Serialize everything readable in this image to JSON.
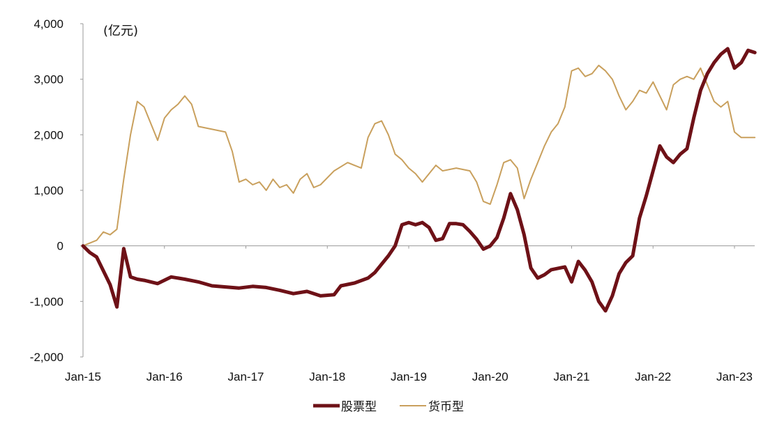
{
  "chart_data": {
    "type": "line",
    "unit_label": "(亿元)",
    "x_tick_labels": [
      "Jan-15",
      "Jan-16",
      "Jan-17",
      "Jan-18",
      "Jan-19",
      "Jan-20",
      "Jan-21",
      "Jan-22",
      "Jan-23"
    ],
    "y_tick_labels": [
      "4,000",
      "3,000",
      "2,000",
      "1,000",
      "0",
      "-1,000",
      "-2,000"
    ],
    "ylim": [
      -2000,
      4000
    ],
    "xlim": [
      "2015-01",
      "2023-05"
    ],
    "grid": false,
    "legend_position": "bottom-center",
    "series": [
      {
        "name": "股票型",
        "color": "#6e1117",
        "points": [
          [
            "2015-01",
            0
          ],
          [
            "2015-02",
            -120
          ],
          [
            "2015-03",
            -200
          ],
          [
            "2015-04",
            -450
          ],
          [
            "2015-05",
            -700
          ],
          [
            "2015-06",
            -1100
          ],
          [
            "2015-07",
            -50
          ],
          [
            "2015-08",
            -560
          ],
          [
            "2015-09",
            -600
          ],
          [
            "2015-10",
            -620
          ],
          [
            "2015-12",
            -680
          ],
          [
            "2016-02",
            -560
          ],
          [
            "2016-04",
            -600
          ],
          [
            "2016-06",
            -650
          ],
          [
            "2016-08",
            -720
          ],
          [
            "2016-10",
            -740
          ],
          [
            "2016-12",
            -760
          ],
          [
            "2017-02",
            -730
          ],
          [
            "2017-04",
            -750
          ],
          [
            "2017-06",
            -800
          ],
          [
            "2017-08",
            -860
          ],
          [
            "2017-10",
            -820
          ],
          [
            "2017-12",
            -900
          ],
          [
            "2018-02",
            -880
          ],
          [
            "2018-03",
            -720
          ],
          [
            "2018-05",
            -670
          ],
          [
            "2018-07",
            -580
          ],
          [
            "2018-08",
            -480
          ],
          [
            "2018-10",
            -180
          ],
          [
            "2018-11",
            0
          ],
          [
            "2018-12",
            380
          ],
          [
            "2019-01",
            420
          ],
          [
            "2019-02",
            380
          ],
          [
            "2019-03",
            420
          ],
          [
            "2019-04",
            330
          ],
          [
            "2019-05",
            100
          ],
          [
            "2019-06",
            130
          ],
          [
            "2019-07",
            400
          ],
          [
            "2019-08",
            400
          ],
          [
            "2019-09",
            380
          ],
          [
            "2019-10",
            260
          ],
          [
            "2019-11",
            120
          ],
          [
            "2019-12",
            -60
          ],
          [
            "2020-01",
            0
          ],
          [
            "2020-02",
            150
          ],
          [
            "2020-03",
            500
          ],
          [
            "2020-04",
            940
          ],
          [
            "2020-05",
            650
          ],
          [
            "2020-06",
            200
          ],
          [
            "2020-07",
            -400
          ],
          [
            "2020-08",
            -580
          ],
          [
            "2020-09",
            -520
          ],
          [
            "2020-10",
            -430
          ],
          [
            "2020-12",
            -380
          ],
          [
            "2021-01",
            -650
          ],
          [
            "2021-02",
            -280
          ],
          [
            "2021-03",
            -440
          ],
          [
            "2021-04",
            -650
          ],
          [
            "2021-05",
            -1000
          ],
          [
            "2021-06",
            -1170
          ],
          [
            "2021-07",
            -900
          ],
          [
            "2021-08",
            -500
          ],
          [
            "2021-09",
            -300
          ],
          [
            "2021-10",
            -180
          ],
          [
            "2021-11",
            500
          ],
          [
            "2021-12",
            900
          ],
          [
            "2022-01",
            1350
          ],
          [
            "2022-02",
            1800
          ],
          [
            "2022-03",
            1600
          ],
          [
            "2022-04",
            1500
          ],
          [
            "2022-05",
            1650
          ],
          [
            "2022-06",
            1750
          ],
          [
            "2022-07",
            2300
          ],
          [
            "2022-08",
            2800
          ],
          [
            "2022-09",
            3100
          ],
          [
            "2022-10",
            3300
          ],
          [
            "2022-11",
            3450
          ],
          [
            "2022-12",
            3550
          ],
          [
            "2023-01",
            3200
          ],
          [
            "2023-02",
            3300
          ],
          [
            "2023-03",
            3520
          ],
          [
            "2023-04",
            3480
          ]
        ]
      },
      {
        "name": "货币型",
        "color": "#c9a05d",
        "points": [
          [
            "2015-01",
            0
          ],
          [
            "2015-02",
            50
          ],
          [
            "2015-03",
            100
          ],
          [
            "2015-04",
            250
          ],
          [
            "2015-05",
            200
          ],
          [
            "2015-06",
            300
          ],
          [
            "2015-07",
            1200
          ],
          [
            "2015-08",
            2000
          ],
          [
            "2015-09",
            2600
          ],
          [
            "2015-10",
            2500
          ],
          [
            "2015-11",
            2200
          ],
          [
            "2015-12",
            1900
          ],
          [
            "2016-01",
            2300
          ],
          [
            "2016-02",
            2450
          ],
          [
            "2016-03",
            2550
          ],
          [
            "2016-04",
            2700
          ],
          [
            "2016-05",
            2550
          ],
          [
            "2016-06",
            2150
          ],
          [
            "2016-08",
            2100
          ],
          [
            "2016-10",
            2050
          ],
          [
            "2016-11",
            1700
          ],
          [
            "2016-12",
            1150
          ],
          [
            "2017-01",
            1200
          ],
          [
            "2017-02",
            1100
          ],
          [
            "2017-03",
            1150
          ],
          [
            "2017-04",
            1000
          ],
          [
            "2017-05",
            1200
          ],
          [
            "2017-06",
            1050
          ],
          [
            "2017-07",
            1100
          ],
          [
            "2017-08",
            950
          ],
          [
            "2017-09",
            1200
          ],
          [
            "2017-10",
            1300
          ],
          [
            "2017-11",
            1050
          ],
          [
            "2017-12",
            1100
          ],
          [
            "2018-02",
            1350
          ],
          [
            "2018-04",
            1500
          ],
          [
            "2018-06",
            1400
          ],
          [
            "2018-07",
            1950
          ],
          [
            "2018-08",
            2200
          ],
          [
            "2018-09",
            2250
          ],
          [
            "2018-10",
            2000
          ],
          [
            "2018-11",
            1650
          ],
          [
            "2018-12",
            1550
          ],
          [
            "2019-01",
            1400
          ],
          [
            "2019-02",
            1300
          ],
          [
            "2019-03",
            1150
          ],
          [
            "2019-05",
            1450
          ],
          [
            "2019-06",
            1350
          ],
          [
            "2019-08",
            1400
          ],
          [
            "2019-10",
            1350
          ],
          [
            "2019-11",
            1150
          ],
          [
            "2019-12",
            800
          ],
          [
            "2020-01",
            750
          ],
          [
            "2020-02",
            1100
          ],
          [
            "2020-03",
            1500
          ],
          [
            "2020-04",
            1550
          ],
          [
            "2020-05",
            1400
          ],
          [
            "2020-06",
            850
          ],
          [
            "2020-07",
            1200
          ],
          [
            "2020-08",
            1500
          ],
          [
            "2020-09",
            1800
          ],
          [
            "2020-10",
            2050
          ],
          [
            "2020-11",
            2200
          ],
          [
            "2020-12",
            2500
          ],
          [
            "2021-01",
            3150
          ],
          [
            "2021-02",
            3200
          ],
          [
            "2021-03",
            3050
          ],
          [
            "2021-04",
            3100
          ],
          [
            "2021-05",
            3250
          ],
          [
            "2021-06",
            3150
          ],
          [
            "2021-07",
            3000
          ],
          [
            "2021-08",
            2700
          ],
          [
            "2021-09",
            2450
          ],
          [
            "2021-10",
            2600
          ],
          [
            "2021-11",
            2800
          ],
          [
            "2021-12",
            2750
          ],
          [
            "2022-01",
            2950
          ],
          [
            "2022-02",
            2700
          ],
          [
            "2022-03",
            2450
          ],
          [
            "2022-04",
            2900
          ],
          [
            "2022-05",
            3000
          ],
          [
            "2022-06",
            3050
          ],
          [
            "2022-07",
            3000
          ],
          [
            "2022-08",
            3200
          ],
          [
            "2022-09",
            2900
          ],
          [
            "2022-10",
            2600
          ],
          [
            "2022-11",
            2500
          ],
          [
            "2022-12",
            2600
          ],
          [
            "2023-01",
            2050
          ],
          [
            "2023-02",
            1950
          ],
          [
            "2023-03",
            1950
          ],
          [
            "2023-04",
            1950
          ]
        ]
      }
    ]
  }
}
